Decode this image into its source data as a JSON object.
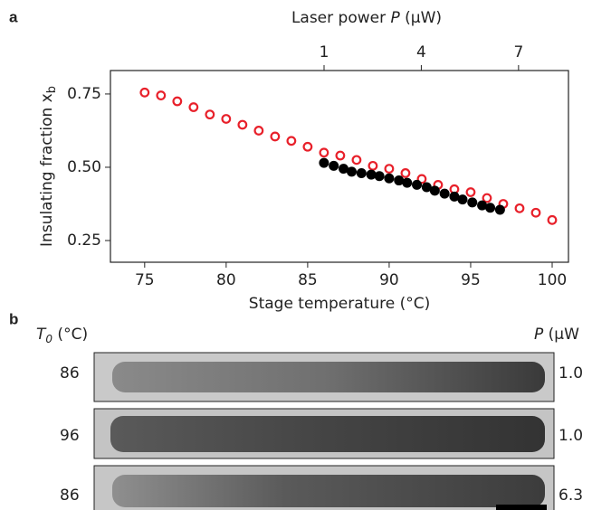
{
  "chart_data": {
    "type": "scatter",
    "panel_label": "a",
    "x2label": {
      "before": "Laser power ",
      "symbol": "P",
      "after": " (μW)"
    },
    "xlabel": "Stage temperature (°C)",
    "ylabel": {
      "main": "Insulating fraction x",
      "sub": "b"
    },
    "xlim": [
      72.9,
      101
    ],
    "xticks": [
      75,
      80,
      85,
      90,
      95,
      100
    ],
    "x2lim": [
      -5.59,
      8.54
    ],
    "x2ticks": [
      1,
      4,
      7
    ],
    "ylim": [
      0.176,
      0.83
    ],
    "yticks": [
      0.75,
      {
        "value": 0.5,
        "label": "0.50"
      },
      0.25
    ],
    "series": [
      {
        "color": "#e8202a",
        "marker": "open",
        "x": [
          75,
          76,
          77,
          78,
          79,
          80,
          81,
          82,
          83,
          84,
          85,
          86,
          87,
          88,
          89,
          90,
          91,
          92,
          93,
          94,
          95,
          96,
          97,
          98,
          99,
          100
        ],
        "values": [
          0.755,
          0.745,
          0.725,
          0.705,
          0.68,
          0.665,
          0.645,
          0.625,
          0.605,
          0.59,
          0.57,
          0.55,
          0.54,
          0.525,
          0.505,
          0.495,
          0.48,
          0.46,
          0.44,
          0.425,
          0.415,
          0.395,
          0.375,
          0.36,
          0.345,
          0.32
        ]
      },
      {
        "color": "#000000",
        "marker": "filled",
        "x": [
          86,
          86.6,
          87.2,
          87.7,
          88.3,
          88.9,
          89.4,
          90,
          90.6,
          91.1,
          91.7,
          92.3,
          92.8,
          93.4,
          94,
          94.5,
          95.1,
          95.7,
          96.2,
          96.8
        ],
        "values": [
          0.515,
          0.505,
          0.495,
          0.485,
          0.48,
          0.475,
          0.47,
          0.462,
          0.455,
          0.447,
          0.44,
          0.432,
          0.42,
          0.41,
          0.4,
          0.39,
          0.38,
          0.37,
          0.362,
          0.355
        ]
      }
    ]
  },
  "panel_b": {
    "panel_label": "b",
    "left_header": {
      "symbol": "T",
      "sub": "0",
      "unit": " (°C)"
    },
    "right_header": {
      "symbol": "P",
      "unit": " (μW"
    },
    "rows": [
      {
        "temperature": "86",
        "power": "1.0"
      },
      {
        "temperature": "96",
        "power": "1.0"
      },
      {
        "temperature": "86",
        "power": "6.3"
      }
    ]
  }
}
